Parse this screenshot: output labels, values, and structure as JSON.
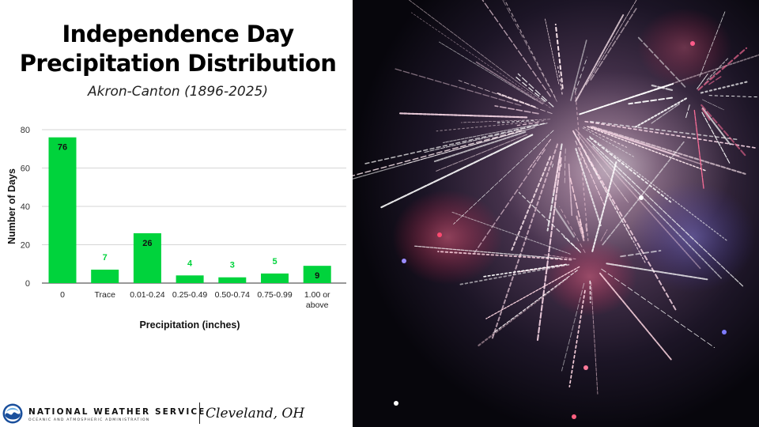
{
  "chart_data": {
    "type": "bar",
    "title_lines": [
      "Independence Day",
      "Precipitation Distribution"
    ],
    "subtitle": "Akron-Canton (1896-2025)",
    "categories": [
      "0",
      "Trace",
      "0.01-0.24",
      "0.25-0.49",
      "0.50-0.74",
      "0.75-0.99",
      [
        "1.00 or",
        "above"
      ]
    ],
    "values": [
      76,
      7,
      26,
      4,
      3,
      5,
      9
    ],
    "data_labels": [
      "76",
      "7",
      "26",
      "4",
      "3",
      "5",
      "9"
    ],
    "xlabel": "Precipitation (inches)",
    "ylabel": "Number of Days",
    "ylim": [
      0,
      80
    ],
    "yticks": [
      0,
      20,
      40,
      60,
      80
    ],
    "grid": true,
    "bar_color": "#00d33c",
    "label_inside_color": "#111111",
    "label_outside_color": "#00d33c"
  },
  "footer": {
    "agency": "NATIONAL WEATHER SERVICE",
    "agency_sub": "OCEANIC AND ATMOSPHERIC ADMINISTRATION",
    "office": "Cleveland, OH"
  },
  "icons": {
    "logo": "noaa-logo-icon",
    "photo": "fireworks-photo"
  }
}
